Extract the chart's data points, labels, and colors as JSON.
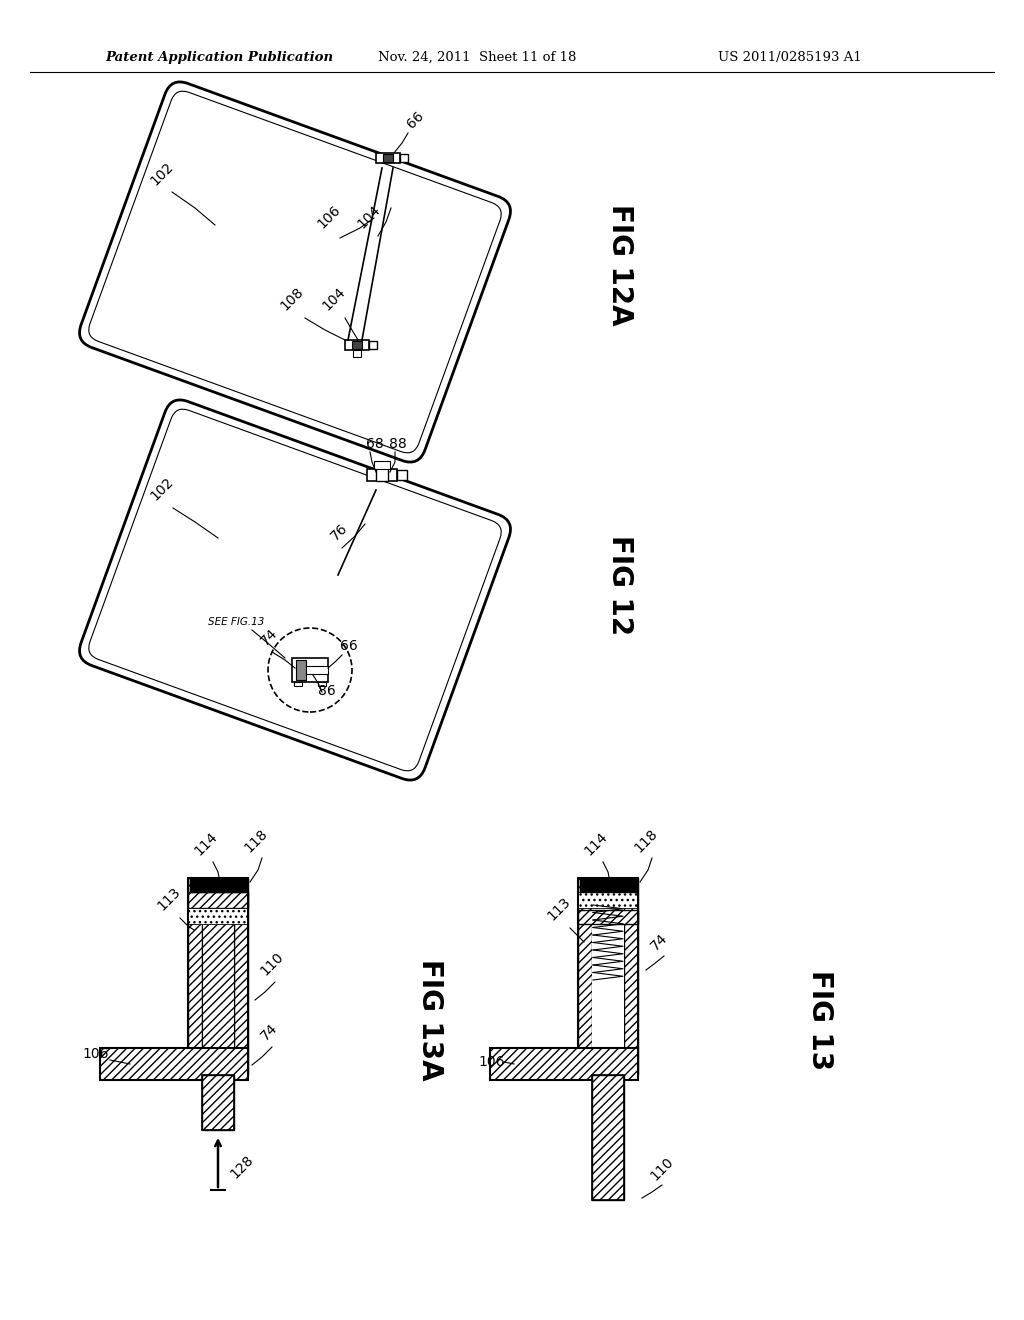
{
  "background_color": "#ffffff",
  "header_left": "Patent Application Publication",
  "header_mid": "Nov. 24, 2011  Sheet 11 of 18",
  "header_right": "US 2011/0285193 A1",
  "fig12a_label": "FIG 12A",
  "fig12_label": "FIG 12",
  "fig13a_label": "FIG 13A",
  "fig13_label": "FIG 13",
  "text_color": "#000000",
  "line_color": "#000000",
  "note_see_fig13": "SEE FIG.13"
}
